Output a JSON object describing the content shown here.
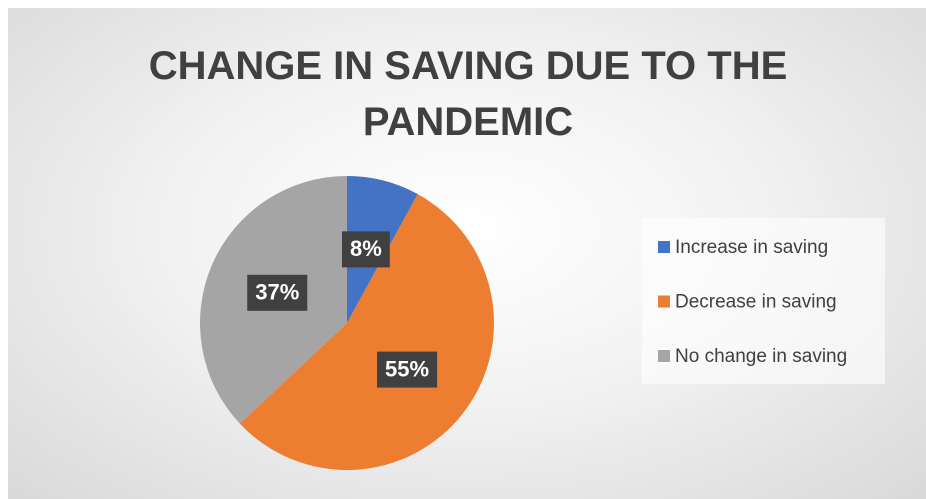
{
  "chart_data": {
    "type": "pie",
    "title": "CHANGE IN SAVING DUE TO THE PANDEMIC",
    "categories": [
      "Increase in saving",
      "Decrease in saving",
      "No change in saving"
    ],
    "values": [
      8,
      55,
      37
    ],
    "value_labels": [
      "8%",
      "55%",
      "37%"
    ],
    "colors": [
      "#4472c4",
      "#ed7d31",
      "#a5a5a5"
    ],
    "legend": "right"
  }
}
